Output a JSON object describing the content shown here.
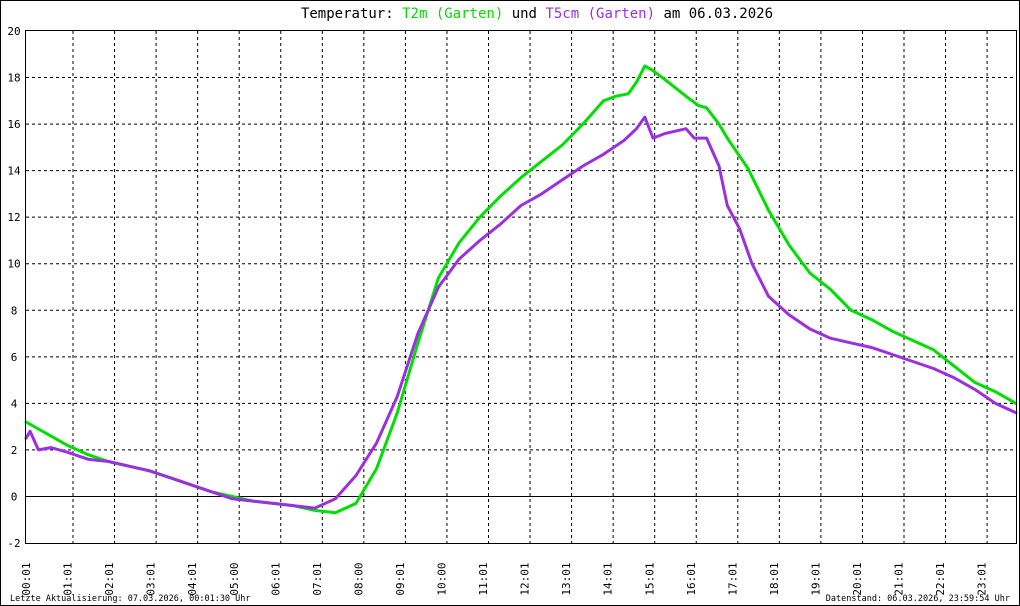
{
  "title": {
    "prefix": "Temperatur:",
    "series1": "T2m (Garten)",
    "connector": "und",
    "series2": "T5cm (Garten)",
    "suffix": "am 06.03.2026"
  },
  "footer": {
    "left": "Letzte Aktualisierung: 07.03.2026, 00:01:30 Uhr",
    "right": "Datenstand: 06.03.2026, 23:59:54 Uhr"
  },
  "chart_data": {
    "type": "line",
    "title": "Temperatur: T2m (Garten) und T5cm (Garten) am 06.03.2026",
    "xlabel": "",
    "ylabel": "",
    "xlim": [
      0,
      24
    ],
    "ylim": [
      -2,
      20
    ],
    "x_ticks": [
      "00:01",
      "01:01",
      "02:01",
      "03:01",
      "04:01",
      "05:00",
      "06:01",
      "07:01",
      "08:00",
      "09:01",
      "10:00",
      "11:01",
      "12:01",
      "13:01",
      "14:01",
      "15:01",
      "16:01",
      "17:01",
      "18:01",
      "19:01",
      "20:01",
      "21:01",
      "22:01",
      "23:01"
    ],
    "y_ticks": [
      -2,
      0,
      2,
      4,
      6,
      8,
      10,
      12,
      14,
      16,
      18,
      20
    ],
    "grid": true,
    "zero_line": true,
    "series": [
      {
        "name": "T2m (Garten)",
        "color": "#00e000",
        "x": [
          0,
          0.5,
          1,
          1.5,
          2,
          2.5,
          3,
          3.5,
          4,
          4.5,
          5,
          5.5,
          6,
          6.5,
          7,
          7.5,
          8,
          8.5,
          9,
          9.5,
          10,
          10.5,
          11,
          11.5,
          12,
          12.5,
          13,
          13.5,
          14,
          14.3,
          14.6,
          14.8,
          15,
          15.2,
          15.5,
          16,
          16.3,
          16.5,
          16.8,
          17,
          17.5,
          18,
          18.5,
          19,
          19.5,
          20,
          20.5,
          21,
          21.5,
          22,
          22.5,
          23,
          23.5,
          24
        ],
        "y": [
          3.2,
          2.7,
          2.2,
          1.8,
          1.5,
          1.3,
          1.1,
          0.8,
          0.5,
          0.2,
          0,
          -0.2,
          -0.3,
          -0.4,
          -0.6,
          -0.7,
          -0.3,
          1.2,
          3.6,
          6.6,
          9.4,
          10.9,
          12.0,
          12.9,
          13.7,
          14.4,
          15.1,
          16.0,
          17.0,
          17.2,
          17.3,
          17.8,
          18.5,
          18.3,
          17.9,
          17.2,
          16.8,
          16.7,
          16.0,
          15.4,
          14.1,
          12.3,
          10.8,
          9.6,
          8.9,
          8.0,
          7.6,
          7.1,
          6.7,
          6.3,
          5.6,
          4.9,
          4.5,
          4.0
        ]
      },
      {
        "name": "T5cm (Garten)",
        "color": "#9a30e0",
        "x": [
          0,
          0.1,
          0.3,
          0.6,
          1,
          1.5,
          2,
          2.5,
          3,
          3.5,
          4,
          4.5,
          5,
          5.5,
          6,
          6.5,
          7,
          7.5,
          8,
          8.5,
          9,
          9.5,
          10,
          10.5,
          11,
          11.5,
          12,
          12.5,
          13,
          13.5,
          14,
          14.5,
          14.8,
          15,
          15.2,
          15.5,
          16,
          16.2,
          16.5,
          16.8,
          17,
          17.3,
          17.6,
          18,
          18.5,
          19,
          19.5,
          20,
          20.5,
          21,
          21.5,
          22,
          22.5,
          23,
          23.5,
          24
        ],
        "y": [
          2.5,
          2.8,
          2.0,
          2.1,
          1.9,
          1.6,
          1.5,
          1.3,
          1.1,
          0.8,
          0.5,
          0.2,
          -0.1,
          -0.2,
          -0.3,
          -0.4,
          -0.5,
          -0.1,
          0.9,
          2.3,
          4.3,
          7.0,
          9.0,
          10.2,
          11.0,
          11.7,
          12.5,
          13.0,
          13.6,
          14.2,
          14.7,
          15.3,
          15.8,
          16.3,
          15.4,
          15.6,
          15.8,
          15.4,
          15.4,
          14.2,
          12.5,
          11.5,
          10.0,
          8.6,
          7.8,
          7.2,
          6.8,
          6.6,
          6.4,
          6.1,
          5.8,
          5.5,
          5.1,
          4.6,
          4.0,
          3.6
        ]
      }
    ]
  }
}
